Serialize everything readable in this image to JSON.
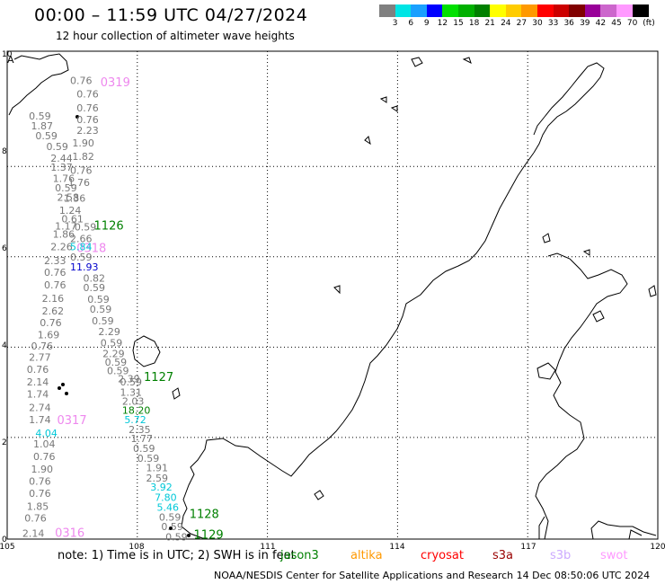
{
  "header": {
    "title": "00:00 – 11:59 UTC 04/27/2024",
    "subtitle": "12 hour collection of altimeter wave heights"
  },
  "legend": {
    "unit": "(ft)",
    "bins": [
      {
        "label": "3",
        "color": "#808080"
      },
      {
        "label": "6",
        "color": "#00e5e5"
      },
      {
        "label": "9",
        "color": "#1aa0ff"
      },
      {
        "label": "12",
        "color": "#0000ff"
      },
      {
        "label": "15",
        "color": "#00e000"
      },
      {
        "label": "18",
        "color": "#00b000"
      },
      {
        "label": "21",
        "color": "#008000"
      },
      {
        "label": "24",
        "color": "#ffff00"
      },
      {
        "label": "27",
        "color": "#ffcc00"
      },
      {
        "label": "30",
        "color": "#ff9900"
      },
      {
        "label": "33",
        "color": "#ff0000"
      },
      {
        "label": "36",
        "color": "#cc0000"
      },
      {
        "label": "39",
        "color": "#800000"
      },
      {
        "label": "42",
        "color": "#990099"
      },
      {
        "label": "45",
        "color": "#cc66cc"
      },
      {
        "label": "70",
        "color": "#ff99ff"
      },
      {
        "label": "",
        "color": "#000000"
      }
    ]
  },
  "map": {
    "lon_labels": [
      "105",
      "108",
      "111",
      "114",
      "117",
      "120"
    ],
    "lat_labels": [
      "0",
      "2",
      "4",
      "6",
      "8",
      "10"
    ],
    "corner_label": "A",
    "colors": {
      "gray": "#777777",
      "green": "#008000",
      "cyan": "#00c8d8",
      "blue": "#0000cc",
      "pink": "#ee88ee"
    },
    "labels": [
      {
        "text": "0319",
        "lon": 107.15,
        "lat": 9.77,
        "c": "pink",
        "big": true
      },
      {
        "text": "0.76",
        "lon": 106.45,
        "lat": 9.82,
        "c": "gray"
      },
      {
        "text": "0.76",
        "lon": 106.6,
        "lat": 9.53,
        "c": "gray"
      },
      {
        "text": "0.76",
        "lon": 106.6,
        "lat": 9.22,
        "c": "gray"
      },
      {
        "text": "0.76",
        "lon": 106.6,
        "lat": 8.96,
        "c": "gray"
      },
      {
        "text": "0.59",
        "lon": 105.5,
        "lat": 9.04,
        "c": "gray"
      },
      {
        "text": "1.87",
        "lon": 105.55,
        "lat": 8.82,
        "c": "gray"
      },
      {
        "text": "2.23",
        "lon": 106.6,
        "lat": 8.72,
        "c": "gray"
      },
      {
        "text": "0.59",
        "lon": 105.65,
        "lat": 8.6,
        "c": "gray"
      },
      {
        "text": "0.59",
        "lon": 105.9,
        "lat": 8.36,
        "c": "gray"
      },
      {
        "text": "1.90",
        "lon": 106.5,
        "lat": 8.44,
        "c": "gray"
      },
      {
        "text": "2.44",
        "lon": 106.0,
        "lat": 8.1,
        "c": "gray"
      },
      {
        "text": "1.82",
        "lon": 106.5,
        "lat": 8.14,
        "c": "gray"
      },
      {
        "text": "1.37",
        "lon": 106.0,
        "lat": 7.9,
        "c": "gray"
      },
      {
        "text": "0.76",
        "lon": 106.45,
        "lat": 7.84,
        "c": "gray"
      },
      {
        "text": "1.76",
        "lon": 106.05,
        "lat": 7.66,
        "c": "gray"
      },
      {
        "text": "1.76",
        "lon": 106.4,
        "lat": 7.57,
        "c": "gray"
      },
      {
        "text": "0.59",
        "lon": 106.1,
        "lat": 7.45,
        "c": "gray"
      },
      {
        "text": "2.58",
        "lon": 106.15,
        "lat": 7.24,
        "c": "gray"
      },
      {
        "text": "1.36",
        "lon": 106.3,
        "lat": 7.22,
        "c": "gray"
      },
      {
        "text": "1.24",
        "lon": 106.2,
        "lat": 6.95,
        "c": "gray"
      },
      {
        "text": "0.61",
        "lon": 106.25,
        "lat": 6.76,
        "c": "gray"
      },
      {
        "text": "1.17",
        "lon": 106.1,
        "lat": 6.6,
        "c": "gray"
      },
      {
        "text": "0.59",
        "lon": 106.55,
        "lat": 6.58,
        "c": "gray"
      },
      {
        "text": "1126",
        "lon": 107.0,
        "lat": 6.6,
        "c": "green",
        "big": true
      },
      {
        "text": "1.86",
        "lon": 106.05,
        "lat": 6.42,
        "c": "gray"
      },
      {
        "text": "2.66",
        "lon": 106.45,
        "lat": 6.32,
        "c": "gray"
      },
      {
        "text": "2.26",
        "lon": 106.0,
        "lat": 6.14,
        "c": "gray"
      },
      {
        "text": "0318",
        "lon": 106.6,
        "lat": 6.1,
        "c": "pink",
        "big": true
      },
      {
        "text": "5.84",
        "lon": 106.45,
        "lat": 6.14,
        "c": "cyan"
      },
      {
        "text": "2.33",
        "lon": 105.85,
        "lat": 5.84,
        "c": "gray"
      },
      {
        "text": "0.59",
        "lon": 106.45,
        "lat": 5.92,
        "c": "gray"
      },
      {
        "text": "0.76",
        "lon": 105.85,
        "lat": 5.58,
        "c": "gray"
      },
      {
        "text": "11.93",
        "lon": 106.45,
        "lat": 5.7,
        "c": "blue"
      },
      {
        "text": "0.82",
        "lon": 106.75,
        "lat": 5.45,
        "c": "gray"
      },
      {
        "text": "0.76",
        "lon": 105.85,
        "lat": 5.3,
        "c": "gray"
      },
      {
        "text": "0.59",
        "lon": 106.75,
        "lat": 5.24,
        "c": "gray"
      },
      {
        "text": "2.16",
        "lon": 105.8,
        "lat": 5.0,
        "c": "gray"
      },
      {
        "text": "0.59",
        "lon": 106.85,
        "lat": 4.98,
        "c": "gray"
      },
      {
        "text": "2.62",
        "lon": 105.8,
        "lat": 4.72,
        "c": "gray"
      },
      {
        "text": "0.59",
        "lon": 106.9,
        "lat": 4.76,
        "c": "gray"
      },
      {
        "text": "0.76",
        "lon": 105.75,
        "lat": 4.46,
        "c": "gray"
      },
      {
        "text": "0.59",
        "lon": 106.95,
        "lat": 4.5,
        "c": "gray"
      },
      {
        "text": "2.29",
        "lon": 107.1,
        "lat": 4.26,
        "c": "gray"
      },
      {
        "text": "1.69",
        "lon": 105.7,
        "lat": 4.2,
        "c": "gray"
      },
      {
        "text": "0.59",
        "lon": 107.15,
        "lat": 4.02,
        "c": "gray"
      },
      {
        "text": "0.76",
        "lon": 105.55,
        "lat": 3.95,
        "c": "gray"
      },
      {
        "text": "2.29",
        "lon": 107.2,
        "lat": 3.78,
        "c": "gray"
      },
      {
        "text": "2.77",
        "lon": 105.5,
        "lat": 3.7,
        "c": "gray"
      },
      {
        "text": "0.59",
        "lon": 107.25,
        "lat": 3.59,
        "c": "gray"
      },
      {
        "text": "0.76",
        "lon": 105.45,
        "lat": 3.43,
        "c": "gray"
      },
      {
        "text": "0.59",
        "lon": 107.3,
        "lat": 3.4,
        "c": "gray"
      },
      {
        "text": "2.39",
        "lon": 107.55,
        "lat": 3.22,
        "c": "gray"
      },
      {
        "text": "1127",
        "lon": 108.15,
        "lat": 3.25,
        "c": "green",
        "big": true
      },
      {
        "text": "0.59",
        "lon": 107.6,
        "lat": 3.15,
        "c": "gray"
      },
      {
        "text": "2.14",
        "lon": 105.45,
        "lat": 3.15,
        "c": "gray"
      },
      {
        "text": "1.31",
        "lon": 107.6,
        "lat": 2.92,
        "c": "gray"
      },
      {
        "text": "1.74",
        "lon": 105.45,
        "lat": 2.88,
        "c": "gray"
      },
      {
        "text": "2.03",
        "lon": 107.65,
        "lat": 2.72,
        "c": "gray"
      },
      {
        "text": "2.74",
        "lon": 105.5,
        "lat": 2.58,
        "c": "gray"
      },
      {
        "text": "18.20",
        "lon": 107.65,
        "lat": 2.52,
        "c": "green"
      },
      {
        "text": "5.72",
        "lon": 107.7,
        "lat": 2.32,
        "c": "cyan"
      },
      {
        "text": "0317",
        "lon": 106.15,
        "lat": 2.3,
        "c": "pink",
        "big": true
      },
      {
        "text": "1.74",
        "lon": 105.5,
        "lat": 2.32,
        "c": "gray"
      },
      {
        "text": "2.35",
        "lon": 107.8,
        "lat": 2.1,
        "c": "gray"
      },
      {
        "text": "4.04",
        "lon": 105.65,
        "lat": 2.02,
        "c": "cyan"
      },
      {
        "text": "1.77",
        "lon": 107.85,
        "lat": 1.9,
        "c": "gray"
      },
      {
        "text": "1.04",
        "lon": 105.6,
        "lat": 1.78,
        "c": "gray"
      },
      {
        "text": "0.59",
        "lon": 107.9,
        "lat": 1.68,
        "c": "gray"
      },
      {
        "text": "0.76",
        "lon": 105.6,
        "lat": 1.5,
        "c": "gray"
      },
      {
        "text": "0.59",
        "lon": 108.0,
        "lat": 1.46,
        "c": "gray"
      },
      {
        "text": "1.91",
        "lon": 108.2,
        "lat": 1.25,
        "c": "gray"
      },
      {
        "text": "1.90",
        "lon": 105.55,
        "lat": 1.22,
        "c": "gray"
      },
      {
        "text": "2.59",
        "lon": 108.2,
        "lat": 1.02,
        "c": "gray"
      },
      {
        "text": "0.76",
        "lon": 105.5,
        "lat": 0.95,
        "c": "gray"
      },
      {
        "text": "3.92",
        "lon": 108.3,
        "lat": 0.82,
        "c": "cyan"
      },
      {
        "text": "0.76",
        "lon": 105.5,
        "lat": 0.68,
        "c": "gray"
      },
      {
        "text": "7.80",
        "lon": 108.4,
        "lat": 0.6,
        "c": "cyan"
      },
      {
        "text": "1.85",
        "lon": 105.45,
        "lat": 0.4,
        "c": "gray"
      },
      {
        "text": "5.46",
        "lon": 108.45,
        "lat": 0.38,
        "c": "cyan"
      },
      {
        "text": "0.76",
        "lon": 105.4,
        "lat": 0.14,
        "c": "gray"
      },
      {
        "text": "0.59",
        "lon": 108.5,
        "lat": 0.16,
        "c": "gray"
      },
      {
        "text": "1128",
        "lon": 109.2,
        "lat": 0.22,
        "c": "green",
        "big": true
      },
      {
        "text": "0.59",
        "lon": 108.55,
        "lat": -0.05,
        "c": "gray"
      },
      {
        "text": "2.14",
        "lon": 105.35,
        "lat": -0.2,
        "c": "gray"
      },
      {
        "text": "0316",
        "lon": 106.1,
        "lat": -0.2,
        "c": "pink",
        "big": true
      },
      {
        "text": "0.59",
        "lon": 108.65,
        "lat": -0.28,
        "c": "gray"
      },
      {
        "text": "1129",
        "lon": 109.3,
        "lat": -0.24,
        "c": "green",
        "big": true
      }
    ]
  },
  "footer": {
    "note": "note: 1) Time is in UTC; 2) SWH is in feet",
    "credit": "NOAA/NESDIS Center for Satellite Applications and Research    14 Dec 08:50:06 UTC 2024",
    "satellites": [
      {
        "name": "jason3",
        "color": "#008000"
      },
      {
        "name": "altika",
        "color": "#ff9900"
      },
      {
        "name": "cryosat",
        "color": "#ff0000"
      },
      {
        "name": "s3a",
        "color": "#990000"
      },
      {
        "name": "s3b",
        "color": "#ccaaff"
      },
      {
        "name": "swot",
        "color": "#ff99ff"
      }
    ]
  }
}
